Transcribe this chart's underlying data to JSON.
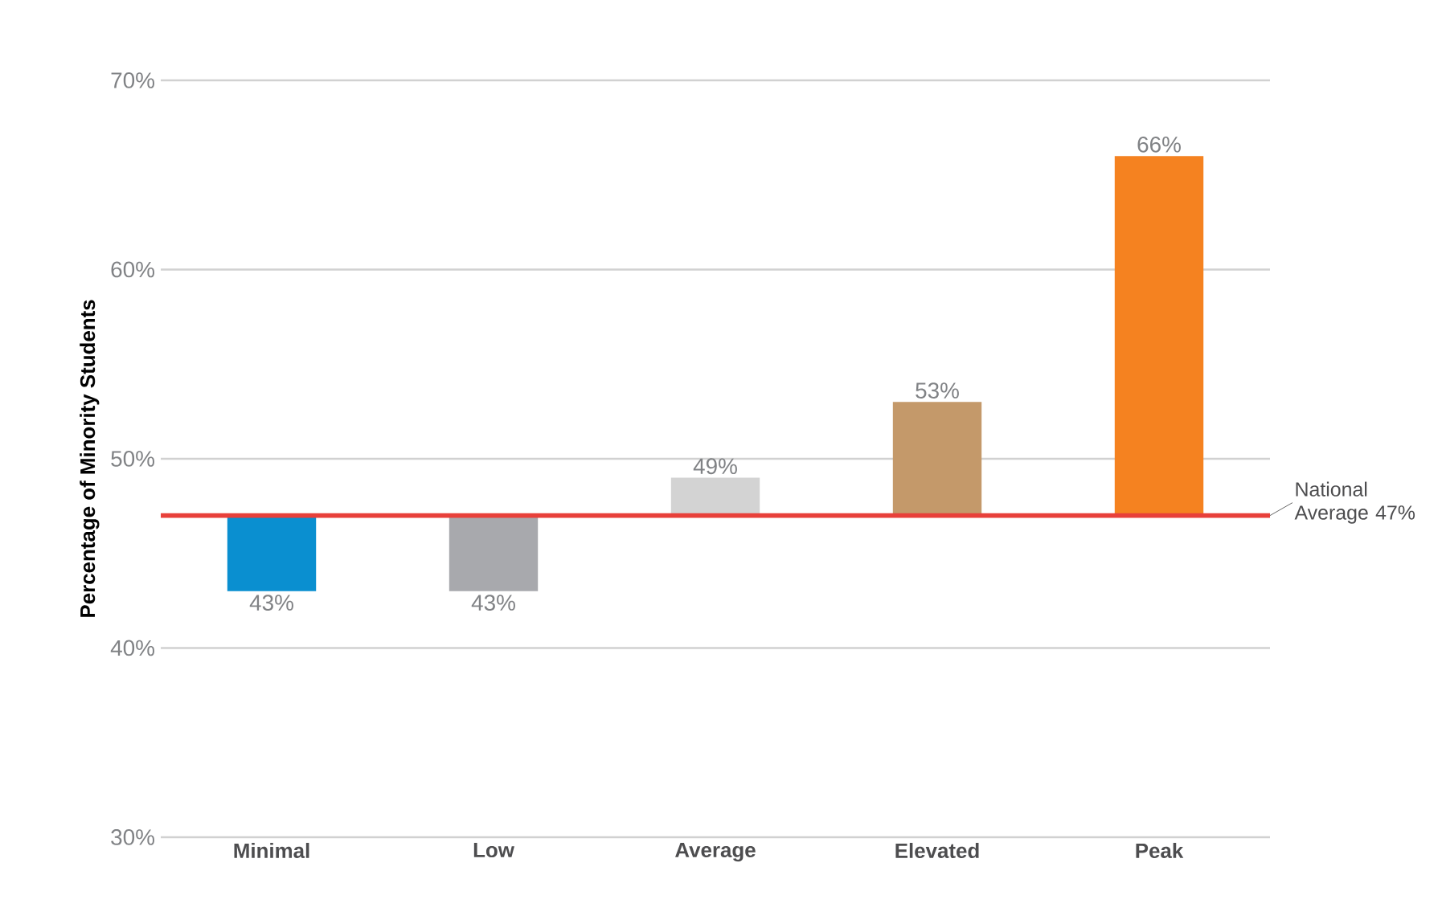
{
  "chart_data": {
    "type": "bar",
    "ylabel": "Percentage of Minority Students",
    "categories": [
      "Minimal",
      "Low",
      "Average",
      "Elevated",
      "Peak"
    ],
    "base": [
      47,
      47,
      47,
      47,
      47
    ],
    "values": [
      -4,
      -4,
      2,
      6,
      19
    ],
    "value_labels": [
      "43%",
      "43%",
      "49%",
      "53%",
      "66%"
    ],
    "colors": [
      "#0a8fd0",
      "#a8a9ad",
      "#d3d3d3",
      "#c4996a",
      "#f58220"
    ],
    "ylim": [
      30,
      70
    ],
    "yticks": [
      {
        "value": 30,
        "label": "30%"
      },
      {
        "value": 40,
        "label": "40%"
      },
      {
        "value": 50,
        "label": "50%"
      },
      {
        "value": 60,
        "label": "60%"
      },
      {
        "value": 70,
        "label": "70%"
      }
    ],
    "grid": "y",
    "ref_lines": [
      {
        "axis": "y",
        "value": 47,
        "label": "National Average 47%",
        "color": "#e8403a"
      }
    ]
  }
}
